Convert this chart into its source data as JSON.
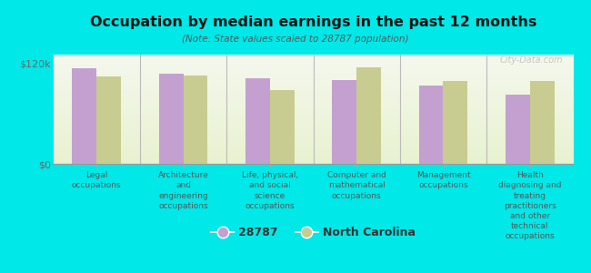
{
  "title": "Occupation by median earnings in the past 12 months",
  "subtitle": "(Note: State values scaled to 28787 population)",
  "background_color": "#00e8e8",
  "plot_background_top": "#f5f8ee",
  "plot_background_bottom": "#e8f2d0",
  "categories": [
    "Legal\noccupations",
    "Architecture\nand\nengineering\noccupations",
    "Life, physical,\nand social\nscience\noccupations",
    "Computer and\nmathematical\noccupations",
    "Management\noccupations",
    "Health\ndiagnosing and\ntreating\npractitioners\nand other\ntechnical\noccupations"
  ],
  "values_28787": [
    114000,
    107000,
    102000,
    100000,
    93000,
    82000
  ],
  "values_nc": [
    104000,
    105000,
    88000,
    115000,
    99000,
    99000
  ],
  "color_28787": "#c4a0d0",
  "color_nc": "#c8cc90",
  "ylim": [
    0,
    130000
  ],
  "yticks": [
    0,
    120000
  ],
  "ytick_labels": [
    "$0",
    "$120k"
  ],
  "legend_28787": "28787",
  "legend_nc": "North Carolina",
  "watermark": "City-Data.com"
}
